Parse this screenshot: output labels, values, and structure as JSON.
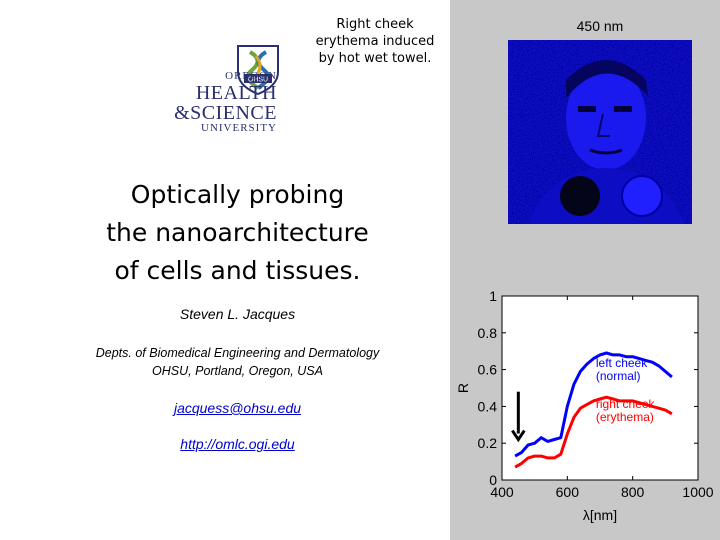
{
  "caption": {
    "line1": "Right cheek",
    "line2": "erythema induced",
    "line3": "by hot wet towel."
  },
  "logo": {
    "line1": "OREGON",
    "line2": "HEALTH",
    "line3": "&SCIENCE",
    "line4": "UNIVERSITY",
    "badge": "OHSU",
    "icon": "ohsu-logo-mark"
  },
  "title": {
    "line1": "Optically probing",
    "line2": "the nanoarchitecture",
    "line3": "of cells and tissues."
  },
  "author": "Steven L. Jacques",
  "affiliation": {
    "line1": "Depts. of Biomedical Engineering and Dermatology",
    "line2": "OHSU, Portland, Oregon, USA"
  },
  "links": {
    "email": "jacquess@ohsu.edu",
    "website": "http://omlc.ogi.edu"
  },
  "image_title": "450 nm",
  "colors": {
    "right_panel": "#c8c8c8",
    "logo": "#2a2f6e",
    "link": "#0000cc",
    "face_image": "#0a0ad8"
  },
  "chart_data": {
    "type": "line",
    "xlabel": "λ[nm]",
    "ylabel": "R",
    "xlim": [
      400,
      1000
    ],
    "ylim": [
      0,
      1
    ],
    "xticks": [
      400,
      600,
      800,
      1000
    ],
    "yticks": [
      0,
      0.2,
      0.4,
      0.6,
      0.8,
      1
    ],
    "grid": false,
    "series": [
      {
        "name": "left cheek (normal)",
        "label1": "left cheek",
        "label2": "(normal)",
        "color": "#0000ff",
        "x": [
          440,
          460,
          480,
          500,
          520,
          540,
          560,
          580,
          600,
          620,
          640,
          660,
          680,
          700,
          720,
          740,
          760,
          780,
          800,
          820,
          840,
          860,
          880,
          900,
          920
        ],
        "y": [
          0.13,
          0.15,
          0.19,
          0.2,
          0.23,
          0.21,
          0.22,
          0.23,
          0.4,
          0.52,
          0.59,
          0.63,
          0.66,
          0.68,
          0.69,
          0.68,
          0.68,
          0.67,
          0.67,
          0.66,
          0.65,
          0.64,
          0.62,
          0.59,
          0.56
        ]
      },
      {
        "name": "right cheek (erythema)",
        "label1": "right cheek",
        "label2": "(erythema)",
        "color": "#ff0000",
        "x": [
          440,
          460,
          480,
          500,
          520,
          540,
          560,
          580,
          600,
          620,
          640,
          660,
          680,
          700,
          720,
          740,
          760,
          780,
          800,
          820,
          840,
          860,
          880,
          900,
          920
        ],
        "y": [
          0.07,
          0.09,
          0.12,
          0.13,
          0.13,
          0.12,
          0.12,
          0.14,
          0.25,
          0.34,
          0.39,
          0.41,
          0.43,
          0.44,
          0.45,
          0.44,
          0.43,
          0.43,
          0.43,
          0.42,
          0.41,
          0.4,
          0.39,
          0.38,
          0.36
        ]
      }
    ],
    "annotation": {
      "type": "arrow",
      "x": 450,
      "y_from": 0.48,
      "y_to": 0.22
    }
  }
}
